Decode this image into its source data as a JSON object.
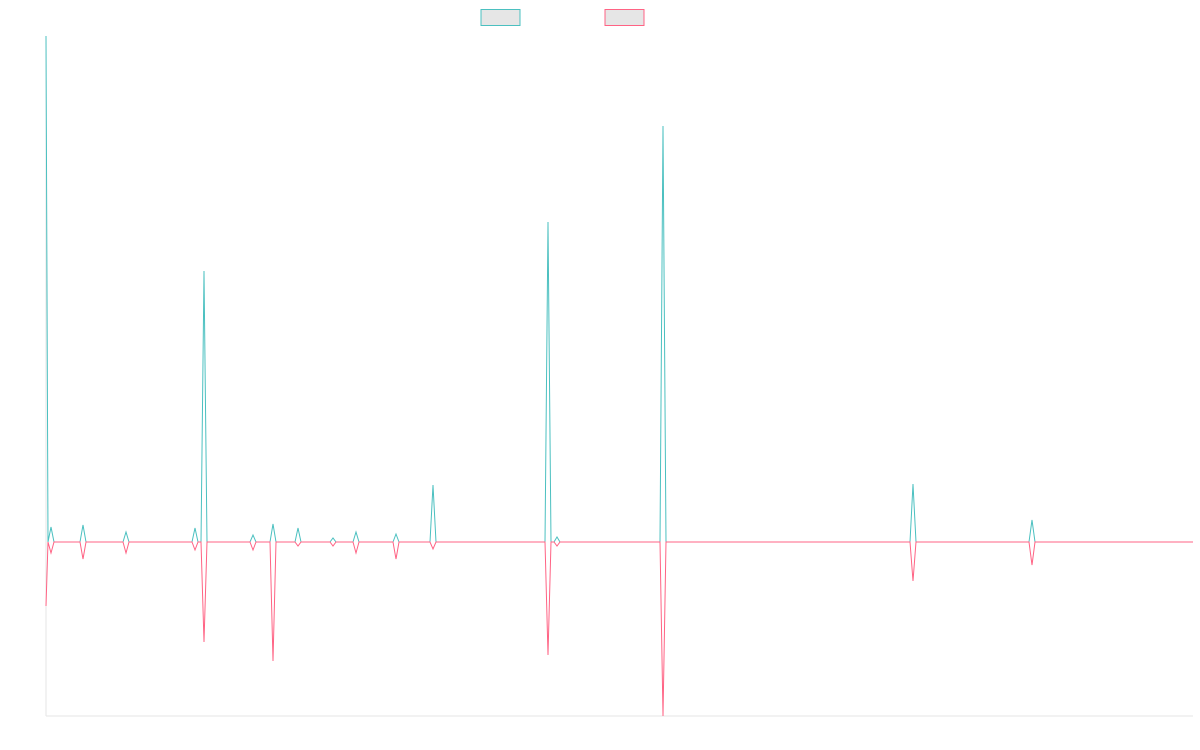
{
  "chart_data": {
    "type": "line",
    "x": [
      0,
      2,
      5,
      8,
      34,
      37,
      40,
      77,
      80,
      83,
      146,
      149,
      152,
      155,
      158,
      161,
      204,
      207,
      210,
      224,
      227,
      230,
      249,
      252,
      255,
      284,
      287,
      290,
      307,
      310,
      313,
      347,
      350,
      353,
      384,
      387,
      390,
      499,
      502,
      505,
      508,
      511,
      514,
      614,
      617,
      620,
      864,
      867,
      870,
      983,
      986,
      989,
      1147
    ],
    "series": [
      {
        "color": "#4bc0c0",
        "values": [
          506,
          0,
          15,
          0,
          0,
          17,
          0,
          0,
          10,
          0,
          0,
          14,
          0,
          0,
          271,
          0,
          0,
          7,
          0,
          0,
          18,
          0,
          0,
          14,
          0,
          0,
          4,
          0,
          0,
          10,
          0,
          0,
          8,
          0,
          0,
          57,
          0,
          0,
          320,
          0,
          0,
          5,
          0,
          0,
          416,
          0,
          0,
          58,
          0,
          0,
          22,
          0,
          0
        ]
      },
      {
        "color": "#ff6384",
        "values": [
          -64,
          0,
          -11,
          0,
          0,
          -17,
          0,
          0,
          -11,
          0,
          0,
          -8,
          0,
          0,
          -100,
          0,
          0,
          -8,
          0,
          0,
          -119,
          0,
          0,
          -4,
          0,
          0,
          -4,
          0,
          0,
          -11,
          0,
          0,
          -17,
          0,
          0,
          -7,
          0,
          0,
          -113,
          0,
          0,
          -4,
          0,
          0,
          -174,
          0,
          0,
          -39,
          0,
          0,
          -23,
          0,
          0
        ]
      }
    ],
    "xlim": [
      0,
      1147
    ],
    "ylim": [
      -174,
      506
    ]
  }
}
